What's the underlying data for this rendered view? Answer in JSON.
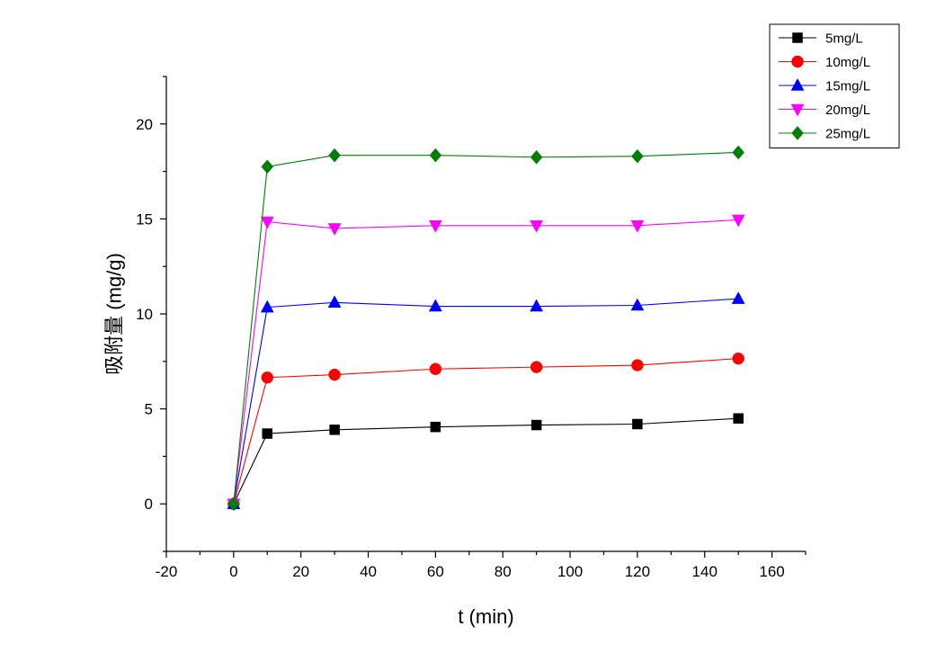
{
  "chart_data": {
    "type": "line",
    "title": "",
    "xlabel": "t (min)",
    "ylabel": "吸附量 (mg/g)",
    "xlim": [
      -20,
      170
    ],
    "ylim": [
      -2.5,
      22.5
    ],
    "xticks": [
      -20,
      0,
      20,
      40,
      60,
      80,
      100,
      120,
      140,
      160
    ],
    "yticks": [
      0,
      5,
      10,
      15,
      20
    ],
    "grid": false,
    "legend_position": "top-right",
    "x": [
      0,
      10,
      30,
      60,
      90,
      120,
      150
    ],
    "series": [
      {
        "name": "5mg/L",
        "color": "#000000",
        "marker": "square",
        "values": [
          0,
          3.7,
          3.9,
          4.05,
          4.15,
          4.2,
          4.5
        ]
      },
      {
        "name": "10mg/L",
        "color": "#ff0000",
        "marker": "circle",
        "values": [
          0,
          6.65,
          6.8,
          7.1,
          7.2,
          7.3,
          7.65
        ]
      },
      {
        "name": "15mg/L",
        "color": "#0000ff",
        "marker": "triangle-up",
        "values": [
          0,
          10.35,
          10.6,
          10.4,
          10.4,
          10.45,
          10.8
        ]
      },
      {
        "name": "20mg/L",
        "color": "#ff00ff",
        "marker": "triangle-down",
        "values": [
          0,
          14.85,
          14.5,
          14.65,
          14.65,
          14.65,
          14.95
        ]
      },
      {
        "name": "25mg/L",
        "color": "#008000",
        "marker": "diamond",
        "values": [
          0,
          17.75,
          18.35,
          18.35,
          18.25,
          18.3,
          18.5
        ]
      }
    ]
  }
}
